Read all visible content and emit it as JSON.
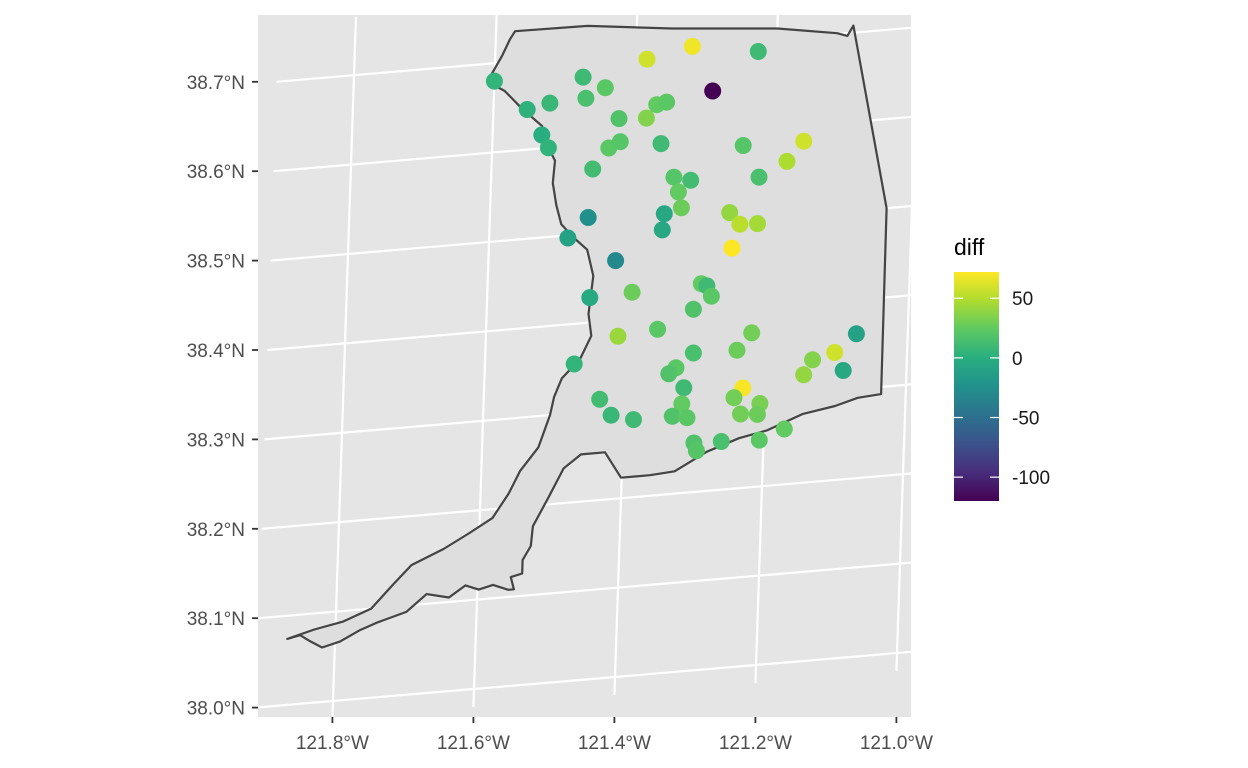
{
  "chart_data": {
    "type": "scatter",
    "map": true,
    "panel_background": "#e5e5e5",
    "gridline_color": "#ffffff",
    "region_fill": "#dedede",
    "region_stroke": "#444444",
    "grid": true,
    "x_ticks": [
      "121.8°W",
      "121.6°W",
      "121.4°W",
      "121.2°W",
      "121.0°W"
    ],
    "y_ticks": [
      "38.7°N",
      "38.6°N",
      "38.5°N",
      "38.4°N",
      "38.3°N",
      "38.2°N",
      "38.1°N",
      "38.0°N"
    ],
    "x_tick_values": [
      -121.8,
      -121.6,
      -121.4,
      -121.2,
      -121.0
    ],
    "y_tick_values": [
      38.7,
      38.6,
      38.5,
      38.4,
      38.3,
      38.2,
      38.1,
      38.0
    ],
    "xlim": [
      -121.91,
      -120.98
    ],
    "ylim": [
      37.98,
      38.765
    ],
    "legend": {
      "title": "diff",
      "position": "right",
      "labels": [
        "50",
        "0",
        "-50",
        "-100"
      ],
      "label_values": [
        50,
        0,
        -50,
        -100
      ],
      "range": [
        -120,
        72
      ],
      "palette": "viridis"
    },
    "boundary": [
      [
        -121.868,
        38.074
      ],
      [
        -121.85,
        38.077
      ],
      [
        -121.835,
        38.069
      ],
      [
        -121.818,
        38.061
      ],
      [
        -121.793,
        38.066
      ],
      [
        -121.765,
        38.077
      ],
      [
        -121.74,
        38.084
      ],
      [
        -121.7,
        38.093
      ],
      [
        -121.672,
        38.111
      ],
      [
        -121.64,
        38.105
      ],
      [
        -121.617,
        38.117
      ],
      [
        -121.598,
        38.111
      ],
      [
        -121.578,
        38.115
      ],
      [
        -121.556,
        38.108
      ],
      [
        -121.548,
        38.108
      ],
      [
        -121.553,
        38.122
      ],
      [
        -121.537,
        38.125
      ],
      [
        -121.537,
        38.14
      ],
      [
        -121.526,
        38.155
      ],
      [
        -121.524,
        38.177
      ],
      [
        -121.503,
        38.208
      ],
      [
        -121.483,
        38.239
      ],
      [
        -121.459,
        38.253
      ],
      [
        -121.425,
        38.253
      ],
      [
        -121.401,
        38.223
      ],
      [
        -121.36,
        38.223
      ],
      [
        -121.325,
        38.225
      ],
      [
        -121.28,
        38.244
      ],
      [
        -121.235,
        38.256
      ],
      [
        -121.196,
        38.262
      ],
      [
        -121.146,
        38.277
      ],
      [
        -121.1,
        38.283
      ],
      [
        -121.068,
        38.29
      ],
      [
        -121.035,
        38.292
      ],
      [
        -121.036,
        38.5
      ],
      [
        -121.092,
        38.708
      ],
      [
        -121.1,
        38.697
      ],
      [
        -121.115,
        38.701
      ],
      [
        -121.2,
        38.712
      ],
      [
        -121.35,
        38.722
      ],
      [
        -121.47,
        38.733
      ],
      [
        -121.573,
        38.734
      ],
      [
        -121.58,
        38.725
      ],
      [
        -121.59,
        38.708
      ],
      [
        -121.61,
        38.68
      ],
      [
        -121.585,
        38.668
      ],
      [
        -121.56,
        38.647
      ],
      [
        -121.53,
        38.625
      ],
      [
        -121.52,
        38.6
      ],
      [
        -121.51,
        38.585
      ],
      [
        -121.512,
        38.56
      ],
      [
        -121.506,
        38.535
      ],
      [
        -121.498,
        38.513
      ],
      [
        -121.48,
        38.497
      ],
      [
        -121.46,
        38.482
      ],
      [
        -121.45,
        38.452
      ],
      [
        -121.455,
        38.41
      ],
      [
        -121.45,
        38.385
      ],
      [
        -121.465,
        38.36
      ],
      [
        -121.49,
        38.34
      ],
      [
        -121.5,
        38.32
      ],
      [
        -121.505,
        38.3
      ],
      [
        -121.52,
        38.265
      ],
      [
        -121.545,
        38.24
      ],
      [
        -121.56,
        38.216
      ],
      [
        -121.582,
        38.19
      ],
      [
        -121.615,
        38.175
      ],
      [
        -121.65,
        38.16
      ],
      [
        -121.695,
        38.145
      ],
      [
        -121.72,
        38.125
      ],
      [
        -121.75,
        38.1
      ],
      [
        -121.79,
        38.088
      ],
      [
        -121.83,
        38.082
      ],
      [
        -121.868,
        38.074
      ]
    ],
    "points": [
      {
        "lon": -121.6,
        "lat": 38.68,
        "diff": 5
      },
      {
        "lon": -121.552,
        "lat": 38.645,
        "diff": 3
      },
      {
        "lon": -121.52,
        "lat": 38.65,
        "diff": 8
      },
      {
        "lon": -121.53,
        "lat": 38.615,
        "diff": 0
      },
      {
        "lon": -121.52,
        "lat": 38.6,
        "diff": 4
      },
      {
        "lon": -121.474,
        "lat": 38.676,
        "diff": 10
      },
      {
        "lon": -121.442,
        "lat": 38.662,
        "diff": 22
      },
      {
        "lon": -121.469,
        "lat": 38.652,
        "diff": 15
      },
      {
        "lon": -121.384,
        "lat": 38.69,
        "diff": 58
      },
      {
        "lon": -121.32,
        "lat": 38.7,
        "diff": 68
      },
      {
        "lon": -121.226,
        "lat": 38.688,
        "diff": 10
      },
      {
        "lon": -121.289,
        "lat": 38.648,
        "diff": -120
      },
      {
        "lon": -121.421,
        "lat": 38.626,
        "diff": 18
      },
      {
        "lon": -121.368,
        "lat": 38.638,
        "diff": 25
      },
      {
        "lon": -121.354,
        "lat": 38.64,
        "diff": 22
      },
      {
        "lon": -121.382,
        "lat": 38.624,
        "diff": 35
      },
      {
        "lon": -121.434,
        "lat": 38.594,
        "diff": 22
      },
      {
        "lon": -121.418,
        "lat": 38.6,
        "diff": 20
      },
      {
        "lon": -121.36,
        "lat": 38.594,
        "diff": 10
      },
      {
        "lon": -121.456,
        "lat": 38.572,
        "diff": 12
      },
      {
        "lon": -121.243,
        "lat": 38.584,
        "diff": 20
      },
      {
        "lon": -121.157,
        "lat": 38.583,
        "diff": 58
      },
      {
        "lon": -121.18,
        "lat": 38.562,
        "diff": 48
      },
      {
        "lon": -121.219,
        "lat": 38.547,
        "diff": 15
      },
      {
        "lon": -121.34,
        "lat": 38.555,
        "diff": 20
      },
      {
        "lon": -121.316,
        "lat": 38.55,
        "diff": 12
      },
      {
        "lon": -121.333,
        "lat": 38.538,
        "diff": 25
      },
      {
        "lon": -121.328,
        "lat": 38.52,
        "diff": 28
      },
      {
        "lon": -121.352,
        "lat": 38.515,
        "diff": -5
      },
      {
        "lon": -121.46,
        "lat": 38.518,
        "diff": -25
      },
      {
        "lon": -121.488,
        "lat": 38.497,
        "diff": -10
      },
      {
        "lon": -121.354,
        "lat": 38.497,
        "diff": -5
      },
      {
        "lon": -121.259,
        "lat": 38.51,
        "diff": 40
      },
      {
        "lon": -121.244,
        "lat": 38.496,
        "diff": 52
      },
      {
        "lon": -121.219,
        "lat": 38.495,
        "diff": 45
      },
      {
        "lon": -121.254,
        "lat": 38.47,
        "diff": 72
      },
      {
        "lon": -121.419,
        "lat": 38.467,
        "diff": -30
      },
      {
        "lon": -121.454,
        "lat": 38.428,
        "diff": -3
      },
      {
        "lon": -121.394,
        "lat": 38.43,
        "diff": 28
      },
      {
        "lon": -121.296,
        "lat": 38.433,
        "diff": 25
      },
      {
        "lon": -121.288,
        "lat": 38.43,
        "diff": 10
      },
      {
        "lon": -121.281,
        "lat": 38.418,
        "diff": 22
      },
      {
        "lon": -121.306,
        "lat": 38.405,
        "diff": 18
      },
      {
        "lon": -121.412,
        "lat": 38.382,
        "diff": 42
      },
      {
        "lon": -121.356,
        "lat": 38.386,
        "diff": 22
      },
      {
        "lon": -121.222,
        "lat": 38.373,
        "diff": 30
      },
      {
        "lon": -121.473,
        "lat": 38.355,
        "diff": 5
      },
      {
        "lon": -121.304,
        "lat": 38.356,
        "diff": 15
      },
      {
        "lon": -121.242,
        "lat": 38.355,
        "diff": 28
      },
      {
        "lon": -121.073,
        "lat": 38.362,
        "diff": -10
      },
      {
        "lon": -121.103,
        "lat": 38.343,
        "diff": 58
      },
      {
        "lon": -121.134,
        "lat": 38.337,
        "diff": 35
      },
      {
        "lon": -121.328,
        "lat": 38.341,
        "diff": 22
      },
      {
        "lon": -121.338,
        "lat": 38.335,
        "diff": 18
      },
      {
        "lon": -121.146,
        "lat": 38.321,
        "diff": 40
      },
      {
        "lon": -121.09,
        "lat": 38.322,
        "diff": -5
      },
      {
        "lon": -121.435,
        "lat": 38.313,
        "diff": 12
      },
      {
        "lon": -121.316,
        "lat": 38.318,
        "diff": 10
      },
      {
        "lon": -121.232,
        "lat": 38.312,
        "diff": 70
      },
      {
        "lon": -121.244,
        "lat": 38.302,
        "diff": 30
      },
      {
        "lon": -121.418,
        "lat": 38.294,
        "diff": 8
      },
      {
        "lon": -121.386,
        "lat": 38.287,
        "diff": 10
      },
      {
        "lon": -121.318,
        "lat": 38.3,
        "diff": 25
      },
      {
        "lon": -121.331,
        "lat": 38.287,
        "diff": 18
      },
      {
        "lon": -121.31,
        "lat": 38.284,
        "diff": 22
      },
      {
        "lon": -121.234,
        "lat": 38.283,
        "diff": 30
      },
      {
        "lon": -121.207,
        "lat": 38.293,
        "diff": 32
      },
      {
        "lon": -121.21,
        "lat": 38.281,
        "diff": 28
      },
      {
        "lon": -121.171,
        "lat": 38.262,
        "diff": 25
      },
      {
        "lon": -121.299,
        "lat": 38.255,
        "diff": 18
      },
      {
        "lon": -121.26,
        "lat": 38.254,
        "diff": 15
      },
      {
        "lon": -121.295,
        "lat": 38.246,
        "diff": 20
      },
      {
        "lon": -121.206,
        "lat": 38.252,
        "diff": 22
      }
    ]
  }
}
